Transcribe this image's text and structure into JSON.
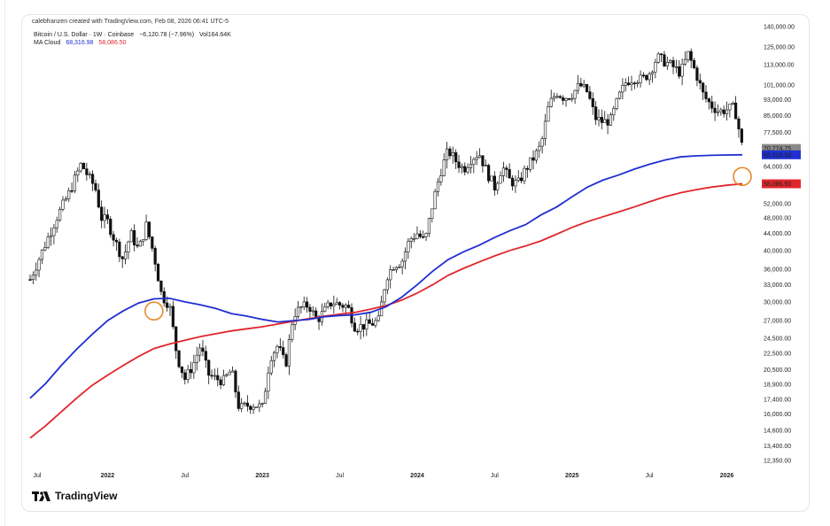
{
  "header": {
    "text": "calebfranzen created with TradingView.com, Feb 08, 2026 06:41 UTC-5"
  },
  "legend": {
    "symbol": "Bitcoin / U.S. Dollar · 1W · Coinbase",
    "change": "−6,120.78 (−7.96%)",
    "volume": "Vol164.64K",
    "ma_label": "MA Cloud",
    "ma_fast": "68,316.98",
    "ma_slow": "58,086.50"
  },
  "logo": {
    "text": "TradingView"
  },
  "colors": {
    "ma_fast": "#1f2fd1",
    "ma_slow": "#e0262b",
    "marker": "#e8892c",
    "candle": "#111111"
  },
  "price_tags": {
    "last": "70,774.75",
    "ma_fast": "68,316.98",
    "ma_slow": "58,086.50"
  },
  "chart_data": {
    "type": "candlestick",
    "scale": "log",
    "y_ticks": [
      "140,000.00",
      "125,000.00",
      "113,000.00",
      "101,000.00",
      "93,000.00",
      "85,000.00",
      "77,500.00",
      "70,774.75",
      "64,000.00",
      "58,086.50",
      "52,000.00",
      "48,000.00",
      "44,000.00",
      "40,000.00",
      "36,000.00",
      "33,000.00",
      "30,000.00",
      "27,000.00",
      "24,500.00",
      "22,500.00",
      "20,500.00",
      "18,900.00",
      "17,400.00",
      "16,000.00",
      "14,600.00",
      "13,400.00",
      "12,350.00"
    ],
    "x_ticks": [
      {
        "label": "Jul",
        "bold": false
      },
      {
        "label": "2022",
        "bold": true
      },
      {
        "label": "Jul",
        "bold": false
      },
      {
        "label": "2023",
        "bold": true
      },
      {
        "label": "Jul",
        "bold": false
      },
      {
        "label": "2024",
        "bold": true
      },
      {
        "label": "Jul",
        "bold": false
      },
      {
        "label": "2025",
        "bold": true
      },
      {
        "label": "Jul",
        "bold": false
      },
      {
        "label": "2026",
        "bold": true
      }
    ],
    "price_path": [
      [
        2021.5,
        34000
      ],
      [
        2021.58,
        40000
      ],
      [
        2021.67,
        48000
      ],
      [
        2021.75,
        55000
      ],
      [
        2021.83,
        65000
      ],
      [
        2021.88,
        60000
      ],
      [
        2021.92,
        57000
      ],
      [
        2021.96,
        48000
      ],
      [
        2022.0,
        47000
      ],
      [
        2022.05,
        42000
      ],
      [
        2022.1,
        38000
      ],
      [
        2022.15,
        44000
      ],
      [
        2022.2,
        40000
      ],
      [
        2022.25,
        46000
      ],
      [
        2022.3,
        39000
      ],
      [
        2022.35,
        31000
      ],
      [
        2022.4,
        29500
      ],
      [
        2022.45,
        22000
      ],
      [
        2022.5,
        19500
      ],
      [
        2022.55,
        21000
      ],
      [
        2022.6,
        23500
      ],
      [
        2022.65,
        20000
      ],
      [
        2022.7,
        19500
      ],
      [
        2022.75,
        19300
      ],
      [
        2022.8,
        20500
      ],
      [
        2022.85,
        16500
      ],
      [
        2022.9,
        16800
      ],
      [
        2022.95,
        16900
      ],
      [
        2023.0,
        16600
      ],
      [
        2023.05,
        22000
      ],
      [
        2023.1,
        23500
      ],
      [
        2023.15,
        21000
      ],
      [
        2023.2,
        28000
      ],
      [
        2023.25,
        29000
      ],
      [
        2023.3,
        29500
      ],
      [
        2023.35,
        27000
      ],
      [
        2023.45,
        30000
      ],
      [
        2023.5,
        29500
      ],
      [
        2023.55,
        29300
      ],
      [
        2023.6,
        26000
      ],
      [
        2023.7,
        26500
      ],
      [
        2023.75,
        27000
      ],
      [
        2023.8,
        34500
      ],
      [
        2023.85,
        37000
      ],
      [
        2023.9,
        37500
      ],
      [
        2023.95,
        42500
      ],
      [
        2024.0,
        44000
      ],
      [
        2024.05,
        42000
      ],
      [
        2024.1,
        52000
      ],
      [
        2024.15,
        62000
      ],
      [
        2024.2,
        70000
      ],
      [
        2024.25,
        66000
      ],
      [
        2024.3,
        63000
      ],
      [
        2024.35,
        67000
      ],
      [
        2024.4,
        69000
      ],
      [
        2024.45,
        62000
      ],
      [
        2024.5,
        57000
      ],
      [
        2024.55,
        64000
      ],
      [
        2024.6,
        59000
      ],
      [
        2024.65,
        58000
      ],
      [
        2024.7,
        63000
      ],
      [
        2024.75,
        67000
      ],
      [
        2024.8,
        72000
      ],
      [
        2024.85,
        90000
      ],
      [
        2024.9,
        97000
      ],
      [
        2024.95,
        94000
      ],
      [
        2025.0,
        96000
      ],
      [
        2025.05,
        101000
      ],
      [
        2025.1,
        97000
      ],
      [
        2025.15,
        84000
      ],
      [
        2025.2,
        82000
      ],
      [
        2025.25,
        83000
      ],
      [
        2025.3,
        94000
      ],
      [
        2025.35,
        103000
      ],
      [
        2025.4,
        105000
      ],
      [
        2025.45,
        104000
      ],
      [
        2025.5,
        108000
      ],
      [
        2025.55,
        118000
      ],
      [
        2025.6,
        115000
      ],
      [
        2025.65,
        112000
      ],
      [
        2025.7,
        108000
      ],
      [
        2025.75,
        120000
      ],
      [
        2025.8,
        108000
      ],
      [
        2025.85,
        95000
      ],
      [
        2025.9,
        90000
      ],
      [
        2025.95,
        87000
      ],
      [
        2026.0,
        88000
      ],
      [
        2026.05,
        89000
      ],
      [
        2026.08,
        78000
      ],
      [
        2026.1,
        70774.75
      ]
    ],
    "ma_fast_series": [
      [
        2021.5,
        17500
      ],
      [
        2021.6,
        19000
      ],
      [
        2021.7,
        21000
      ],
      [
        2021.8,
        23000
      ],
      [
        2021.9,
        25000
      ],
      [
        2022.0,
        27000
      ],
      [
        2022.1,
        28500
      ],
      [
        2022.2,
        29800
      ],
      [
        2022.3,
        30500
      ],
      [
        2022.4,
        30600
      ],
      [
        2022.5,
        30000
      ],
      [
        2022.6,
        29500
      ],
      [
        2022.7,
        28900
      ],
      [
        2022.8,
        28100
      ],
      [
        2022.9,
        27700
      ],
      [
        2023.0,
        27200
      ],
      [
        2023.1,
        26800
      ],
      [
        2023.2,
        27000
      ],
      [
        2023.3,
        27200
      ],
      [
        2023.4,
        27600
      ],
      [
        2023.5,
        27800
      ],
      [
        2023.6,
        27900
      ],
      [
        2023.7,
        28300
      ],
      [
        2023.8,
        29200
      ],
      [
        2023.9,
        30800
      ],
      [
        2024.0,
        33000
      ],
      [
        2024.1,
        35600
      ],
      [
        2024.2,
        38000
      ],
      [
        2024.3,
        39700
      ],
      [
        2024.4,
        41200
      ],
      [
        2024.5,
        43000
      ],
      [
        2024.6,
        44700
      ],
      [
        2024.7,
        46200
      ],
      [
        2024.8,
        48800
      ],
      [
        2024.9,
        51000
      ],
      [
        2025.0,
        54000
      ],
      [
        2025.1,
        57000
      ],
      [
        2025.2,
        59300
      ],
      [
        2025.3,
        61000
      ],
      [
        2025.4,
        63000
      ],
      [
        2025.5,
        64800
      ],
      [
        2025.6,
        66300
      ],
      [
        2025.7,
        67500
      ],
      [
        2025.8,
        67900
      ],
      [
        2025.9,
        68100
      ],
      [
        2026.0,
        68250
      ],
      [
        2026.1,
        68316.98
      ]
    ],
    "ma_slow_series": [
      [
        2021.5,
        14000
      ],
      [
        2021.6,
        15000
      ],
      [
        2021.7,
        16200
      ],
      [
        2021.8,
        17500
      ],
      [
        2021.9,
        18800
      ],
      [
        2022.0,
        19900
      ],
      [
        2022.1,
        21000
      ],
      [
        2022.2,
        22100
      ],
      [
        2022.3,
        23100
      ],
      [
        2022.4,
        23700
      ],
      [
        2022.5,
        24200
      ],
      [
        2022.6,
        24700
      ],
      [
        2022.7,
        25100
      ],
      [
        2022.8,
        25500
      ],
      [
        2022.9,
        25800
      ],
      [
        2023.0,
        26100
      ],
      [
        2023.1,
        26500
      ],
      [
        2023.2,
        26900
      ],
      [
        2023.3,
        27300
      ],
      [
        2023.4,
        27700
      ],
      [
        2023.5,
        28000
      ],
      [
        2023.6,
        28300
      ],
      [
        2023.7,
        28800
      ],
      [
        2023.8,
        29400
      ],
      [
        2023.9,
        30300
      ],
      [
        2024.0,
        31500
      ],
      [
        2024.1,
        33000
      ],
      [
        2024.2,
        34800
      ],
      [
        2024.3,
        36200
      ],
      [
        2024.4,
        37500
      ],
      [
        2024.5,
        38800
      ],
      [
        2024.6,
        40000
      ],
      [
        2024.7,
        41000
      ],
      [
        2024.8,
        42200
      ],
      [
        2024.9,
        43800
      ],
      [
        2025.0,
        45500
      ],
      [
        2025.1,
        47000
      ],
      [
        2025.2,
        48300
      ],
      [
        2025.3,
        49600
      ],
      [
        2025.4,
        51000
      ],
      [
        2025.5,
        52500
      ],
      [
        2025.6,
        54000
      ],
      [
        2025.7,
        55200
      ],
      [
        2025.8,
        56200
      ],
      [
        2025.9,
        57000
      ],
      [
        2026.0,
        57600
      ],
      [
        2026.1,
        58086.5
      ]
    ],
    "markers": [
      {
        "x": 2022.3,
        "y": 28500
      },
      {
        "x": 2026.1,
        "y": 60500
      }
    ]
  }
}
